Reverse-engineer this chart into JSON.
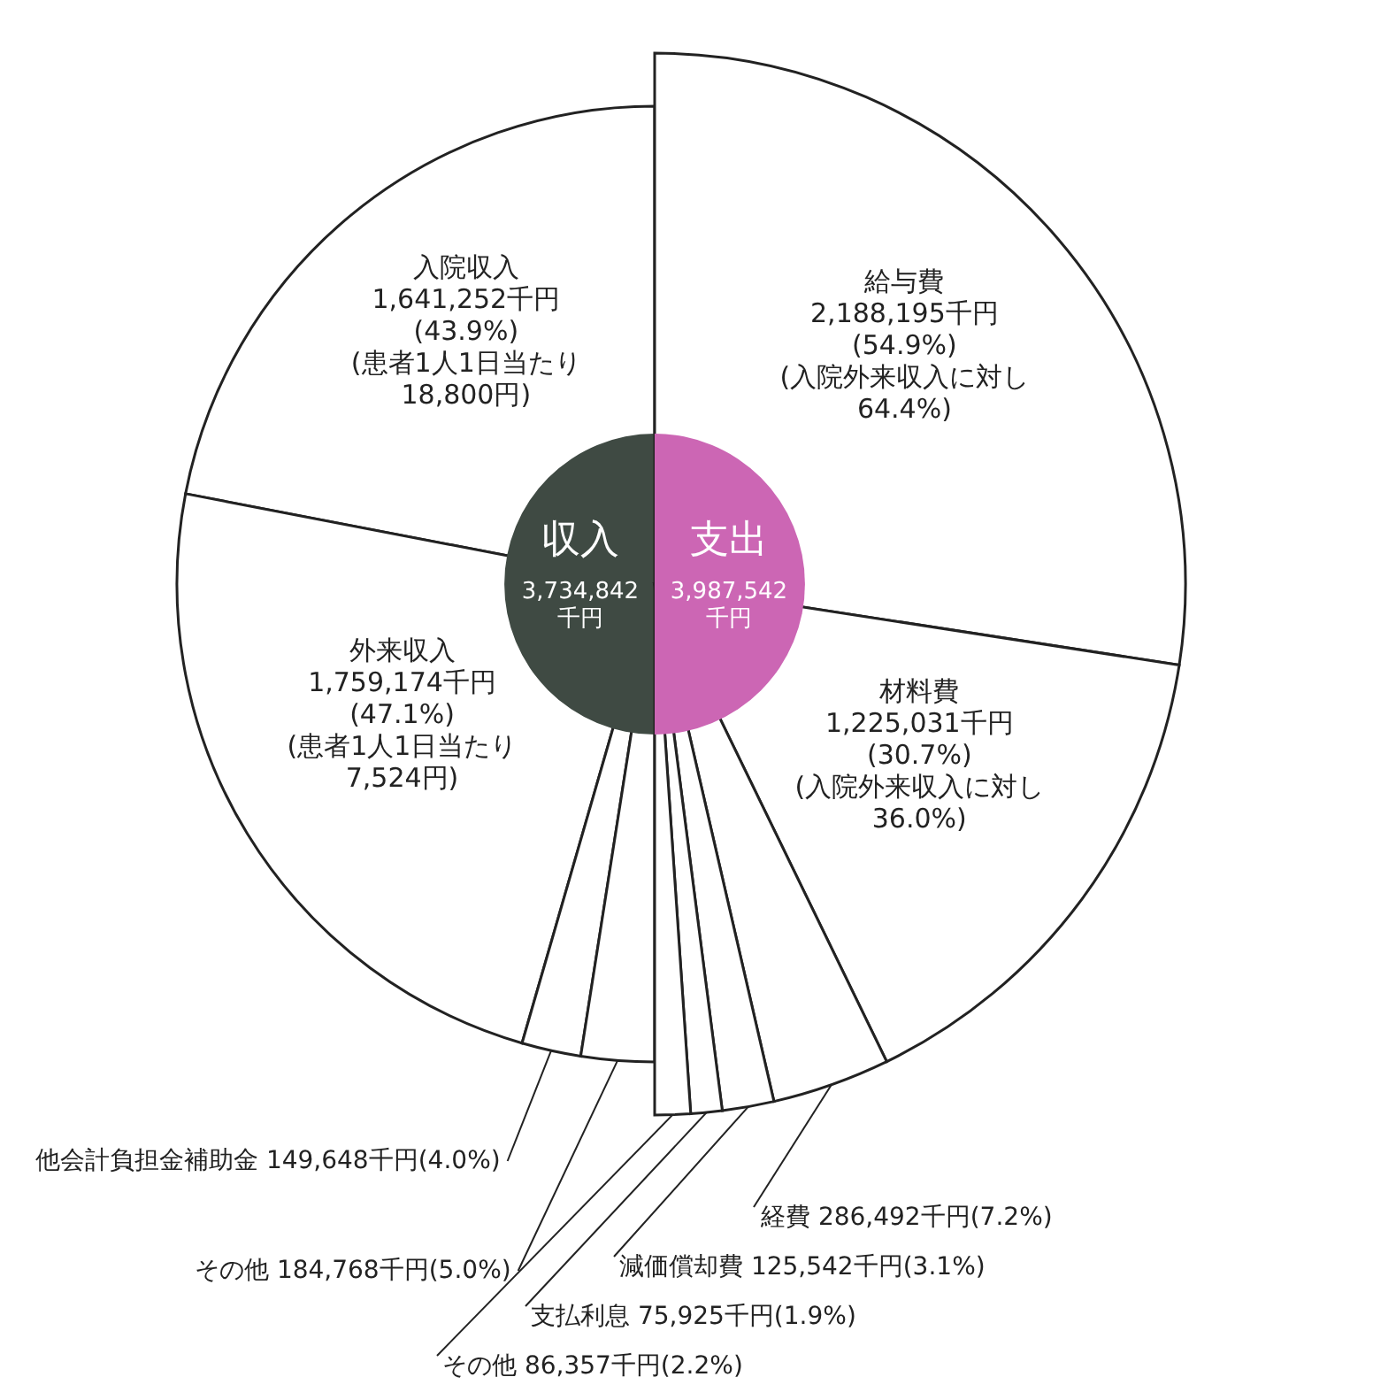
{
  "chart_data": [
    {
      "type": "pie",
      "title": "収入",
      "subtitle": "3,734,842千円",
      "categories": [
        "入院収入",
        "外来収入",
        "他会計負担金補助金",
        "その他"
      ],
      "values": [
        1641252,
        1759174,
        149648,
        184768
      ],
      "colors": [
        "#ffffff",
        "#ffffff",
        "#ffffff",
        "#ffffff"
      ],
      "value_labels": [
        "1,641,252千円\n(43.9%)\n(患者1人1日当たり\n18,800円)",
        "1,759,174千円\n(47.1%)\n(患者1人1日当たり\n7,524円)",
        "149,648千円(4.0%)",
        "184,768千円(5.0%)"
      ]
    },
    {
      "type": "pie",
      "title": "支出",
      "subtitle": "3,987,542千円",
      "categories": [
        "給与費",
        "材料費",
        "経費",
        "減価償却費",
        "支払利息",
        "その他"
      ],
      "values": [
        2188195,
        1225031,
        286492,
        125542,
        75925,
        86357
      ],
      "colors": [
        "#ffffff",
        "#ffffff",
        "#ffffff",
        "#ffffff",
        "#ffffff",
        "#ffffff"
      ],
      "value_labels": [
        "2,188,195千円\n(54.9%)\n(入院外来収入に対し\n64.4%)",
        "1,225,031千円\n(30.7%)\n(入院外来収入に対し\n36.0%)",
        "286,492千円(7.2%)",
        "125,542千円(3.1%)",
        "75,925千円(1.9%)",
        "86,357千円(2.2%)"
      ]
    }
  ]
}
